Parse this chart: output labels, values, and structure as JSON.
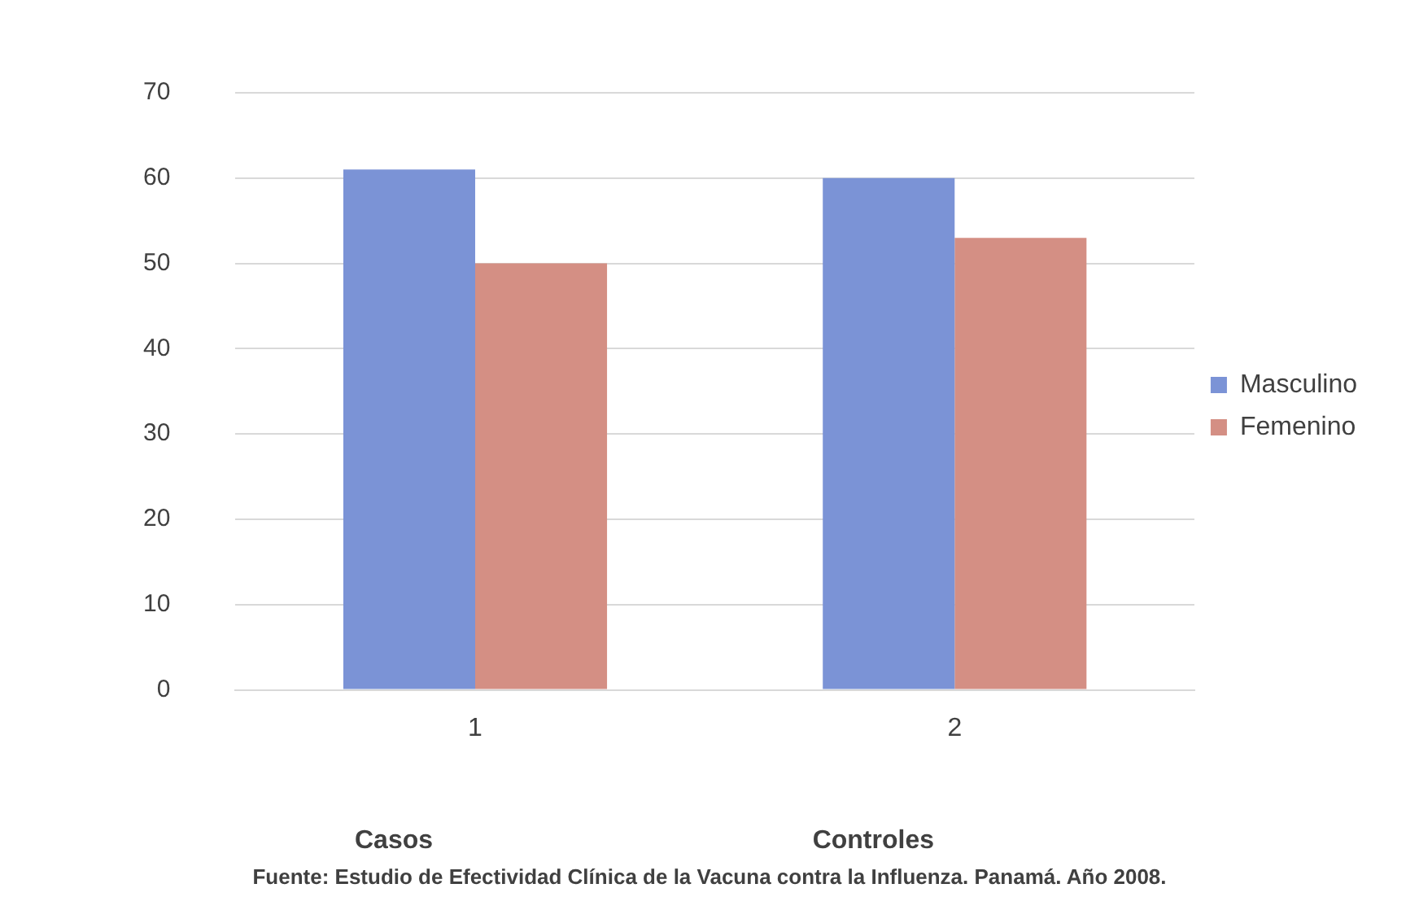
{
  "chart_data": {
    "type": "bar",
    "categories": [
      "1",
      "2"
    ],
    "series": [
      {
        "name": "Masculino",
        "color": "#7b93d6",
        "values": [
          61,
          60
        ]
      },
      {
        "name": "Femenino",
        "color": "#d48f84",
        "values": [
          50,
          53
        ]
      }
    ],
    "ylim": [
      0,
      70
    ],
    "yticks": [
      0,
      10,
      20,
      30,
      40,
      50,
      60,
      70
    ],
    "grid": "y",
    "legend": "right",
    "annotations": [
      "Casos",
      "Controles",
      "Fuente: Estudio de Efectividad Clínica de la Vacuna contra la Influenza. Panamá. Año 2008."
    ]
  }
}
